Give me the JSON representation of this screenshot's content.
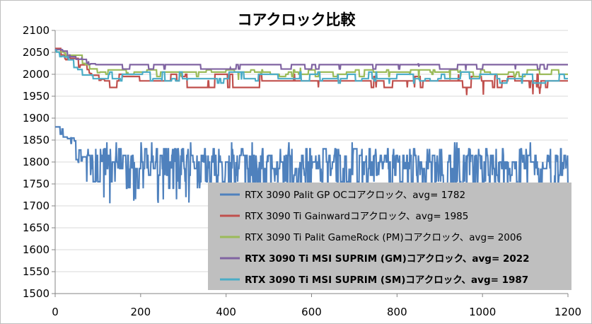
{
  "chart_data": {
    "type": "line",
    "title": "コアクロック比較",
    "xlabel": "",
    "ylabel": "",
    "xlim": [
      0,
      1200
    ],
    "ylim": [
      1500,
      2100
    ],
    "x_ticks": [
      0,
      200,
      400,
      600,
      800,
      1000,
      1200
    ],
    "y_ticks": [
      1500,
      1550,
      1600,
      1650,
      1700,
      1750,
      1800,
      1850,
      1900,
      1950,
      2000,
      2050,
      2100
    ],
    "grid": "horizontal",
    "legend_position": "bottom-right",
    "series": [
      {
        "name": "RTX 3090 Palit GP OCコアクロック、avg= 1782",
        "color": "#4f81bd",
        "bold": false,
        "avg": 1782,
        "initial": 1880,
        "settle_x": 70,
        "levels": [
          1800,
          1785,
          1815,
          1770,
          1830,
          1755,
          1800,
          1740,
          1815,
          1785
        ],
        "min_dip": 1705,
        "max_peak": 1845
      },
      {
        "name": "RTX 3090 Ti Gainwardコアクロック、avg= 1985",
        "color": "#c0504d",
        "bold": false,
        "avg": 1985,
        "initial": 2055,
        "settle_x": 110,
        "levels": [
          1985,
          1970,
          1995,
          1985,
          2000,
          1985,
          1970
        ],
        "min_dip": 1948,
        "max_peak": 2010
      },
      {
        "name": "RTX 3090 Ti Palit GameRock (PM)コアクロック、avg= 2006",
        "color": "#9bbb59",
        "bold": false,
        "avg": 2006,
        "initial": 2055,
        "settle_x": 100,
        "levels": [
          2005,
          1995,
          2010,
          2005,
          2000,
          2010
        ],
        "min_dip": 1980,
        "max_peak": 2015
      },
      {
        "name": "RTX 3090 Ti MSI SUPRIM (GM)コアクロック、avg= 2022",
        "color": "#8064a2",
        "bold": true,
        "avg": 2022,
        "initial": 2055,
        "settle_x": 85,
        "levels": [
          2022,
          2012,
          2022,
          2022
        ],
        "min_dip": 2005,
        "max_peak": 2025
      },
      {
        "name": "RTX 3090 Ti MSI SUPRIM (SM)コアクロック、avg= 1987",
        "color": "#4bacc6",
        "bold": true,
        "avg": 1987,
        "initial": 2055,
        "settle_x": 75,
        "levels": [
          1990,
          1980,
          2000,
          1990,
          2005,
          1985
        ],
        "min_dip": 1975,
        "max_peak": 2040
      }
    ]
  }
}
